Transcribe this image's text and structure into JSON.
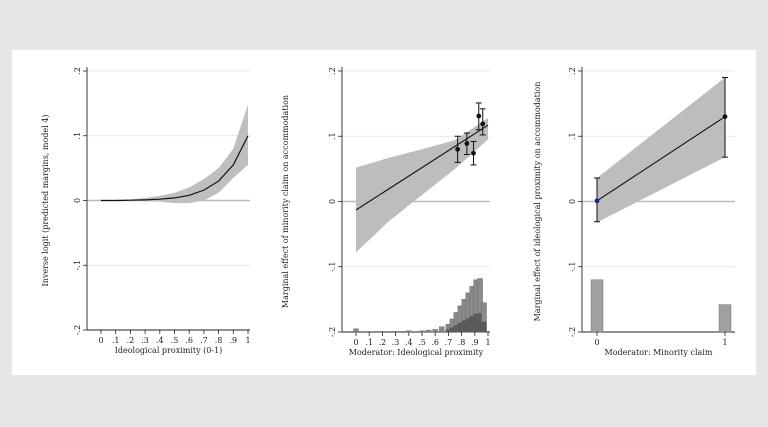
{
  "chart_data": [
    {
      "type": "line",
      "panel": "left",
      "ylabel": "Inverse logit (predicted margins, model 4)",
      "xlabel": "Ideological proximity (0-1)",
      "xticks": [
        "0",
        ".1",
        ".2",
        ".3",
        ".4",
        ".5",
        ".6",
        ".7",
        ".8",
        ".9",
        "1"
      ],
      "yticks": [
        ".2",
        ".1",
        "0",
        "-.1",
        "-.2"
      ],
      "xlim": [
        0,
        1
      ],
      "ylim": [
        -0.2,
        0.2
      ],
      "series": [
        {
          "x": [
            0,
            0.1,
            0.2,
            0.3,
            0.4,
            0.5,
            0.6,
            0.7,
            0.8,
            0.9,
            1
          ],
          "y": [
            0,
            0,
            0.0005,
            0.001,
            0.002,
            0.004,
            0.008,
            0.016,
            0.03,
            0.055,
            0.1
          ],
          "lower": [
            0,
            0,
            -0.0005,
            -0.001,
            -0.002,
            -0.004,
            -0.004,
            0.0,
            0.012,
            0.035,
            0.055
          ],
          "upper": [
            0,
            0.0005,
            0.0015,
            0.004,
            0.007,
            0.012,
            0.02,
            0.033,
            0.05,
            0.08,
            0.148
          ]
        }
      ]
    },
    {
      "type": "line",
      "panel": "middle",
      "ylabel": "Marginal effect of minority claim on accommodation",
      "xlabel": "Moderator: Ideological proximity",
      "xticks": [
        "0",
        ".1",
        ".2",
        ".3",
        ".4",
        ".5",
        ".6",
        ".7",
        ".8",
        ".9",
        "1"
      ],
      "yticks": [
        ".2",
        ".1",
        "0",
        "-.1",
        "-.2"
      ],
      "xlim": [
        0,
        1
      ],
      "ylim": [
        -0.2,
        0.2
      ],
      "line": {
        "x": [
          0,
          1
        ],
        "y": [
          -0.013,
          0.117
        ]
      },
      "band": {
        "x": [
          0,
          0.25,
          0.5,
          0.75,
          1
        ],
        "lower": [
          -0.078,
          -0.03,
          0.01,
          0.05,
          0.095
        ],
        "upper": [
          0.052,
          0.067,
          0.08,
          0.094,
          0.128
        ]
      },
      "points": [
        {
          "x": 0.77,
          "y": 0.08,
          "lo": 0.06,
          "hi": 0.1
        },
        {
          "x": 0.84,
          "y": 0.089,
          "lo": 0.072,
          "hi": 0.105
        },
        {
          "x": 0.89,
          "y": 0.074,
          "lo": 0.056,
          "hi": 0.092
        },
        {
          "x": 0.93,
          "y": 0.131,
          "lo": 0.11,
          "hi": 0.151
        },
        {
          "x": 0.96,
          "y": 0.119,
          "lo": 0.102,
          "hi": 0.142
        }
      ],
      "histogram": {
        "x": [
          0,
          0.1,
          0.2,
          0.3,
          0.4,
          0.5,
          0.55,
          0.6,
          0.65,
          0.7,
          0.73,
          0.76,
          0.79,
          0.82,
          0.85,
          0.88,
          0.91,
          0.94,
          0.97
        ],
        "height": [
          0.005,
          0.001,
          0.001,
          0.001,
          0.002,
          0.002,
          0.003,
          0.004,
          0.008,
          0.012,
          0.02,
          0.03,
          0.04,
          0.05,
          0.06,
          0.07,
          0.08,
          0.082,
          0.045
        ]
      }
    },
    {
      "type": "line",
      "panel": "right",
      "ylabel": "Marginal effect of ideological proximity on accommodation",
      "xlabel": "Moderator: Minority claim",
      "xticks": [
        "0",
        "1"
      ],
      "yticks": [
        ".2",
        ".1",
        "0",
        "-.1",
        "-.2"
      ],
      "xlim": [
        0,
        1
      ],
      "ylim": [
        -0.2,
        0.2
      ],
      "line": {
        "x": [
          0,
          1
        ],
        "y": [
          0.001,
          0.13
        ]
      },
      "band": {
        "x": [
          0,
          1
        ],
        "lower": [
          -0.032,
          0.068
        ],
        "upper": [
          0.036,
          0.19
        ]
      },
      "points": [
        {
          "x": 0,
          "y": 0.001,
          "lo": -0.031,
          "hi": 0.036,
          "color": "#1f1fa0"
        },
        {
          "x": 1,
          "y": 0.13,
          "lo": 0.068,
          "hi": 0.19,
          "color": "#111111"
        }
      ],
      "histogram": {
        "x": [
          0,
          1
        ],
        "height": [
          0.08,
          0.042
        ]
      }
    }
  ]
}
